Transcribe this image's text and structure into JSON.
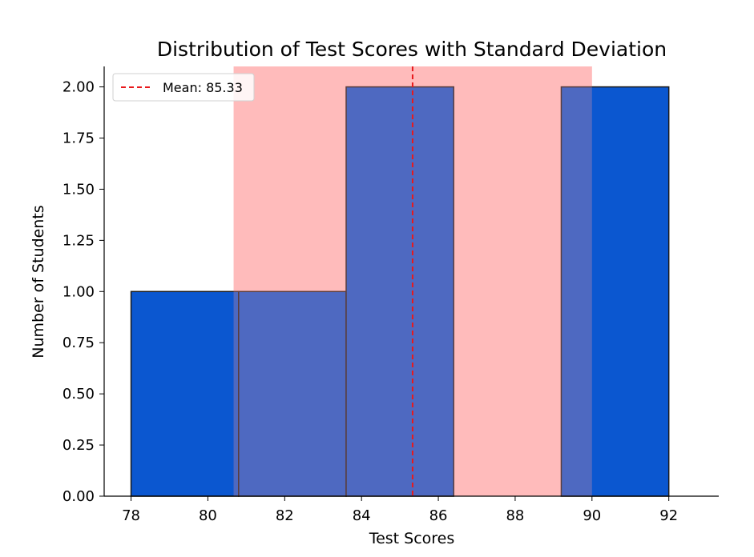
{
  "chart_data": {
    "type": "bar",
    "title": "Distribution of Test Scores with Standard Deviation",
    "xlabel": "Test Scores",
    "ylabel": "Number of Students",
    "xlim": [
      77.3,
      93.3
    ],
    "ylim": [
      0,
      2.1
    ],
    "xticks": [
      "78",
      "80",
      "82",
      "84",
      "86",
      "88",
      "90",
      "92"
    ],
    "xtick_values": [
      78,
      80,
      82,
      84,
      86,
      88,
      90,
      92
    ],
    "yticks": [
      "0.00",
      "0.25",
      "0.50",
      "0.75",
      "1.00",
      "1.25",
      "1.50",
      "1.75",
      "2.00"
    ],
    "ytick_values": [
      0,
      0.25,
      0.5,
      0.75,
      1.0,
      1.25,
      1.5,
      1.75,
      2.0
    ],
    "bins": [
      {
        "x0": 78.0,
        "x1": 80.8,
        "count": 1
      },
      {
        "x0": 80.8,
        "x1": 83.6,
        "count": 1
      },
      {
        "x0": 83.6,
        "x1": 86.4,
        "count": 2
      },
      {
        "x0": 86.4,
        "x1": 89.2,
        "count": 0
      },
      {
        "x0": 89.2,
        "x1": 92.0,
        "count": 2
      }
    ],
    "mean": 85.33,
    "std_band": [
      80.67,
      90.0
    ],
    "legend": {
      "label": "Mean: 85.33",
      "placement": "upper-left"
    },
    "colors": {
      "bar": "#0b57d0",
      "band": "#ff9a9a",
      "mean_line": "#e8191c",
      "edge": "#1a1a1a"
    },
    "grid": false
  }
}
